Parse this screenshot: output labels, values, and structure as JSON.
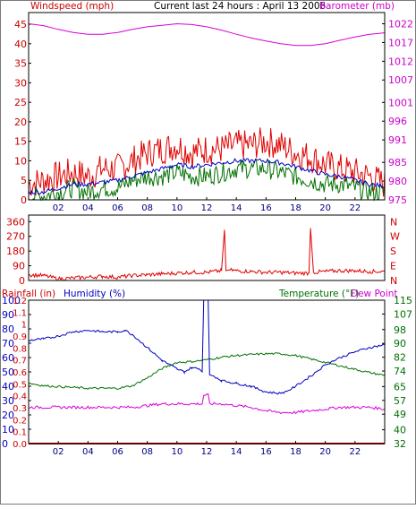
{
  "chart_data": [
    {
      "panel": "wind-barometer",
      "type": "line",
      "title": "Current last 24 hours : April 13 2006",
      "ylabel_left": "Windspeed (mph)",
      "ylabel_right": "Barometer (mb)",
      "x_ticks": [
        "02",
        "04",
        "06",
        "08",
        "10",
        "12",
        "14",
        "16",
        "18",
        "20",
        "22"
      ],
      "y_left_ticks": [
        0,
        5,
        10,
        15,
        20,
        25,
        30,
        35,
        40,
        45
      ],
      "y_right_ticks": [
        975,
        980,
        985,
        991,
        996,
        1001,
        1007,
        1012,
        1017,
        1022
      ],
      "ylim_left": [
        0,
        48
      ],
      "ylim_right": [
        975,
        1025
      ],
      "x_range_hours": [
        0,
        24
      ],
      "grid": false,
      "colors": {
        "gust": "#e00000",
        "wind": "#007000",
        "avg": "#0000c0",
        "barometer": "#d800d8",
        "left_axis": "#cc0000",
        "right_axis": "#cc00cc"
      },
      "series": [
        {
          "key": "barometer",
          "axis": "right",
          "x": [
            0,
            1,
            2,
            3,
            4,
            5,
            6,
            7,
            8,
            9,
            10,
            11,
            12,
            13,
            14,
            15,
            16,
            17,
            18,
            19,
            20,
            21,
            22,
            23,
            24
          ],
          "values": [
            1022,
            1021.5,
            1020.5,
            1019.7,
            1019.2,
            1019.2,
            1019.7,
            1020.5,
            1021.2,
            1021.6,
            1022,
            1021.8,
            1021.2,
            1020.3,
            1019.2,
            1018.2,
            1017.4,
            1016.7,
            1016.2,
            1016.2,
            1016.7,
            1017.6,
            1018.5,
            1019.2,
            1019.6
          ]
        },
        {
          "key": "gust",
          "axis": "left",
          "x": [
            0,
            1,
            2,
            3,
            4,
            5,
            6,
            7,
            8,
            9,
            10,
            11,
            12,
            13,
            14,
            15,
            16,
            17,
            18,
            19,
            20,
            21,
            22,
            23,
            24
          ],
          "values": [
            4,
            5,
            6,
            7,
            6,
            8,
            8,
            10,
            12,
            13,
            14,
            12,
            13,
            13,
            14,
            14,
            15,
            14,
            12,
            11,
            9,
            8,
            7,
            6,
            4
          ]
        },
        {
          "key": "wind",
          "axis": "left",
          "x": [
            0,
            1,
            2,
            3,
            4,
            5,
            6,
            7,
            8,
            9,
            10,
            11,
            12,
            13,
            14,
            15,
            16,
            17,
            18,
            19,
            20,
            21,
            22,
            23,
            24
          ],
          "values": [
            1,
            1,
            2,
            3,
            2,
            3,
            3,
            5,
            6,
            6,
            7,
            6,
            6,
            7,
            8,
            8,
            8,
            7,
            6,
            5,
            4,
            4,
            3,
            2,
            2
          ]
        },
        {
          "key": "avg",
          "axis": "left",
          "x": [
            0,
            1,
            2,
            3,
            4,
            5,
            6,
            7,
            8,
            9,
            10,
            11,
            12,
            13,
            14,
            15,
            16,
            17,
            18,
            19,
            20,
            21,
            22,
            23,
            24
          ],
          "values": [
            2,
            2,
            3,
            4,
            4,
            4.5,
            5,
            6,
            7,
            8,
            9,
            8.5,
            9,
            9.5,
            10,
            10,
            10,
            9.5,
            8.5,
            7.5,
            6.5,
            6,
            5,
            4,
            3.5
          ]
        }
      ]
    },
    {
      "panel": "wind-direction",
      "type": "line",
      "y_left_ticks": [
        0,
        90,
        180,
        270,
        360
      ],
      "y_right_labels": [
        "N",
        "W",
        "S",
        "E",
        "N"
      ],
      "ylim": [
        0,
        400
      ],
      "x_range_hours": [
        0,
        24
      ],
      "x_ticks": [],
      "grid": false,
      "colors": {
        "direction": "#e00000",
        "left_axis": "#cc0000",
        "right_axis": "#cc0000"
      },
      "series": [
        {
          "key": "direction",
          "x": [
            0,
            1,
            2,
            3,
            4,
            5,
            6,
            7,
            8,
            9,
            10,
            11,
            12,
            13,
            13.2,
            13.3,
            13.5,
            14,
            15,
            16,
            17,
            18,
            18.9,
            19.0,
            19.2,
            20,
            21,
            22,
            23,
            24
          ],
          "values": [
            35,
            30,
            10,
            15,
            20,
            25,
            20,
            30,
            35,
            40,
            45,
            50,
            50,
            60,
            310,
            60,
            65,
            60,
            55,
            50,
            50,
            45,
            45,
            320,
            50,
            55,
            60,
            60,
            55,
            55
          ]
        }
      ]
    },
    {
      "panel": "rain-humidity-temperature",
      "type": "line",
      "labels": {
        "rainfall": "Rainfall (in)",
        "humidity": "Humidity (%)",
        "temperature": "Temperature (°F)",
        "dew_point": "Dew Point"
      },
      "x_ticks": [
        "02",
        "04",
        "06",
        "08",
        "10",
        "12",
        "14",
        "16",
        "18",
        "20",
        "22"
      ],
      "rain_ticks": [
        "0.0",
        "0.1",
        "0.2",
        "0.3",
        "0.4",
        "0.5",
        "0.6",
        "0.7",
        "0.8",
        "0.9",
        "1",
        "1.1",
        "1.2"
      ],
      "humidity_ticks": [
        0,
        10,
        20,
        30,
        40,
        50,
        60,
        70,
        80,
        90,
        100
      ],
      "temperature_ticks": [
        32,
        40,
        49,
        57,
        65,
        74,
        82,
        90,
        98,
        107,
        115
      ],
      "ylim_humidity": [
        0,
        100
      ],
      "ylim_rain": [
        0,
        1.2
      ],
      "ylim_temperature": [
        32,
        115
      ],
      "x_range_hours": [
        0,
        24
      ],
      "grid": false,
      "colors": {
        "humidity": "#0000c0",
        "temperature": "#007000",
        "dew_point": "#d800d8",
        "rainfall": "#cc0000",
        "rain_axis": "#cc0000",
        "humidity_axis": "#0000c0",
        "temperature_axis": "#007000"
      },
      "series": [
        {
          "key": "humidity",
          "axis": "humidity",
          "x": [
            0,
            1,
            2,
            3,
            4,
            5,
            6,
            6.5,
            7,
            8,
            9,
            10,
            10.5,
            11,
            11.5,
            11.7,
            11.8,
            12.1,
            12.2,
            12.5,
            13,
            14,
            15,
            16,
            17,
            17.5,
            18,
            19,
            20,
            21,
            22,
            23,
            24
          ],
          "values": [
            72,
            73,
            75,
            78,
            79,
            78,
            78,
            79,
            76,
            67,
            58,
            52,
            50,
            53,
            52,
            50,
            100,
            100,
            48,
            47,
            44,
            42,
            40,
            36,
            35,
            37,
            40,
            47,
            55,
            60,
            64,
            67,
            69
          ]
        },
        {
          "key": "temperature",
          "axis": "temperature",
          "x": [
            0,
            1,
            2,
            3,
            4,
            5,
            6,
            7,
            8,
            9,
            10,
            11,
            12,
            13,
            14,
            15,
            16,
            17,
            18,
            19,
            20,
            21,
            22,
            23,
            24
          ],
          "values": [
            67,
            65.5,
            65,
            64.5,
            64,
            64,
            64,
            65.5,
            70,
            75.5,
            79,
            79.5,
            80.5,
            82,
            83,
            83.5,
            84,
            84,
            83,
            81,
            79,
            77,
            75,
            73,
            71.5
          ]
        },
        {
          "key": "dew_point",
          "axis": "temperature",
          "x": [
            0,
            1,
            2,
            3,
            4,
            5,
            6,
            7,
            8,
            9,
            10,
            11,
            11.7,
            11.8,
            12.1,
            12.2,
            13,
            14,
            15,
            16,
            17,
            18,
            19,
            20,
            21,
            22,
            23,
            24
          ],
          "values": [
            53,
            53,
            53,
            53,
            53,
            53,
            53,
            53,
            54,
            55,
            55,
            55,
            55,
            60,
            60,
            55,
            55,
            54,
            53,
            51,
            50,
            50,
            51,
            52,
            53,
            53,
            53,
            52
          ]
        },
        {
          "key": "rainfall",
          "axis": "rain",
          "x": [
            0,
            24
          ],
          "values": [
            0,
            0
          ]
        }
      ]
    }
  ]
}
